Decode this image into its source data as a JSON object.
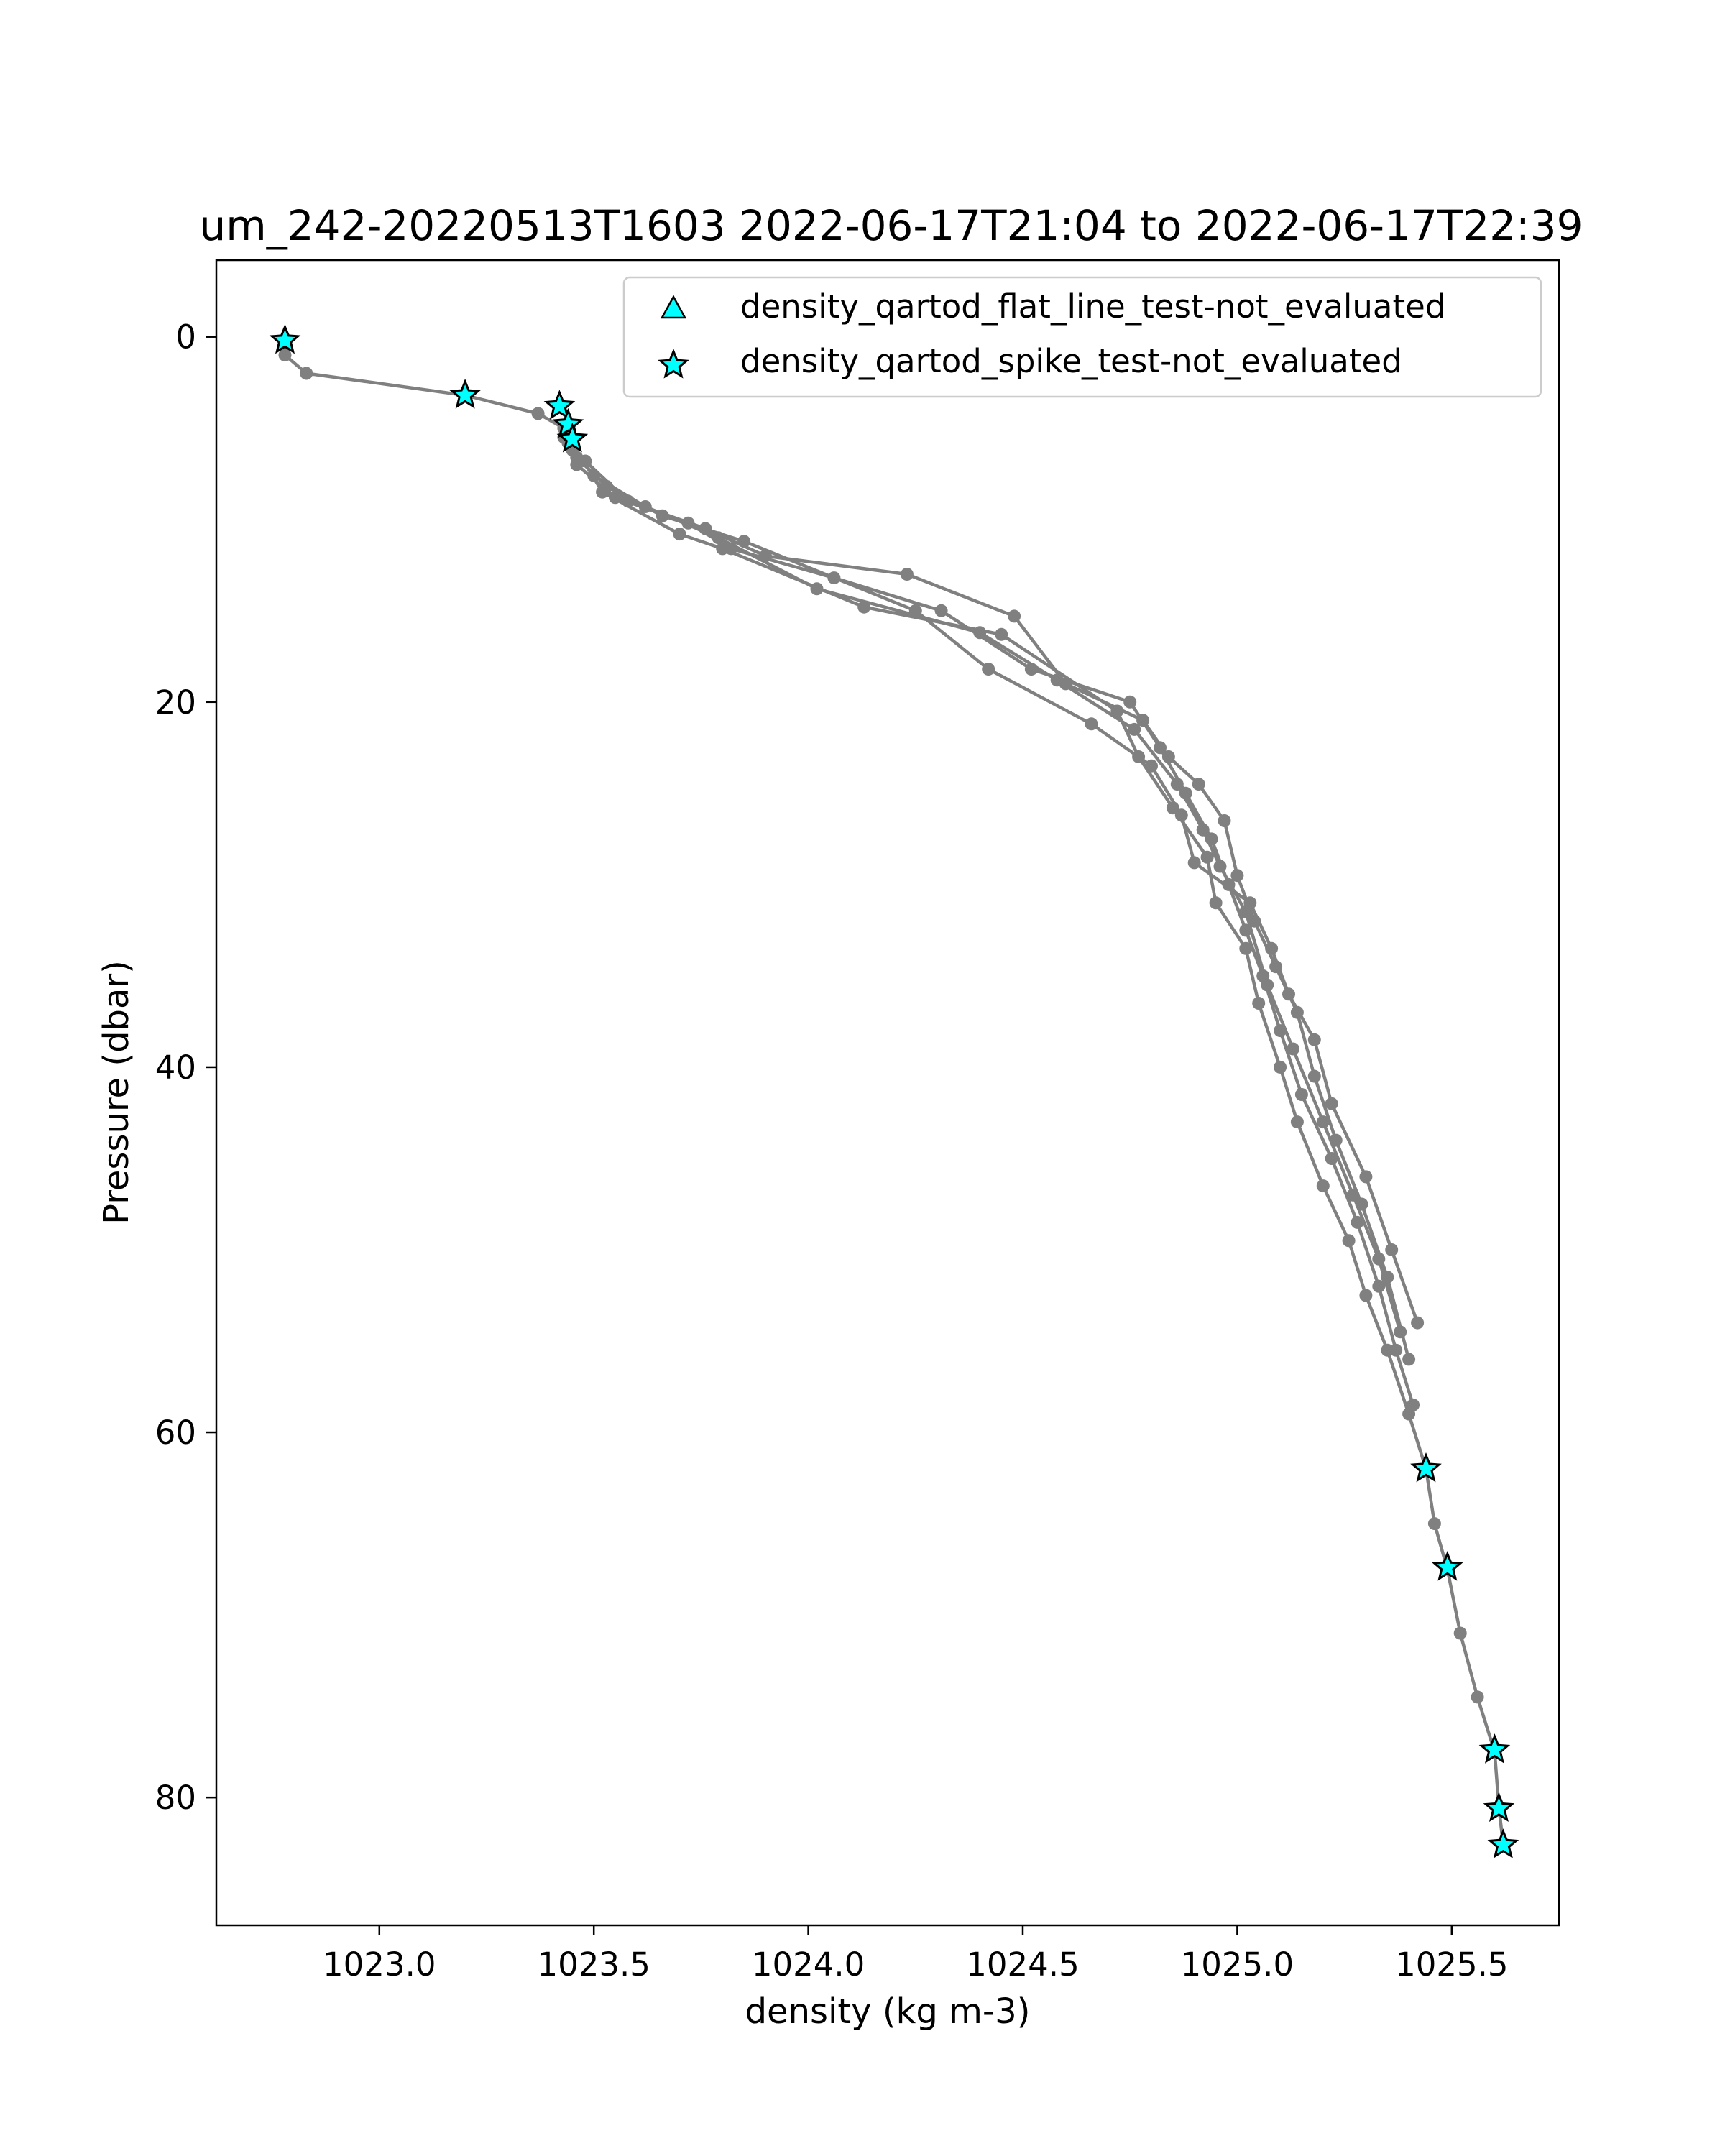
{
  "chart_data": {
    "type": "line",
    "title": "um_242-20220513T1603 2022-06-17T21:04 to 2022-06-17T22:39",
    "xlabel": "density (kg m-3)",
    "ylabel": "Pressure (dbar)",
    "xlim": [
      1022.62,
      1025.75
    ],
    "ylim": [
      87.0,
      -4.2
    ],
    "y_inverted": true,
    "xticks": [
      1023.0,
      1023.5,
      1024.0,
      1024.5,
      1025.0,
      1025.5
    ],
    "xtick_labels": [
      "1023.0",
      "1023.5",
      "1024.0",
      "1024.5",
      "1025.0",
      "1025.5"
    ],
    "yticks": [
      0,
      20,
      40,
      60,
      80
    ],
    "ytick_labels": [
      "0",
      "20",
      "40",
      "60",
      "80"
    ],
    "grid": false,
    "legend_position": "top-right",
    "colors": {
      "profile_line": "#808080",
      "marker_fill": "#00ffff",
      "marker_edge": "#000000"
    },
    "legend": [
      {
        "label": "density_qartod_flat_line_test-not_evaluated",
        "marker": "triangle"
      },
      {
        "label": "density_qartod_spike_test-not_evaluated",
        "marker": "star"
      }
    ],
    "series": [
      {
        "x": [
          1022.78,
          1022.78,
          1022.83,
          1023.2,
          1023.37,
          1023.43,
          1023.45,
          1023.52,
          1023.7,
          1023.8,
          1024.13,
          1024.45,
          1024.72,
          1024.77,
          1024.85,
          1024.93,
          1024.95,
          1025.02,
          1025.05,
          1025.1,
          1025.14,
          1025.2,
          1025.26,
          1025.3,
          1025.35,
          1025.4,
          1025.44,
          1025.46,
          1025.49,
          1025.52,
          1025.56,
          1025.6,
          1025.61,
          1025.62
        ],
        "y": [
          0.3,
          1.0,
          2.0,
          3.2,
          4.2,
          5.0,
          5.8,
          8.5,
          10.8,
          11.6,
          14.8,
          16.3,
          20.5,
          23.0,
          25.8,
          28.5,
          31.0,
          33.5,
          36.5,
          40.0,
          43.0,
          46.5,
          49.5,
          52.5,
          55.5,
          59.0,
          62.0,
          65.0,
          67.5,
          71.0,
          74.5,
          77.5,
          80.5,
          82.6
        ]
      },
      {
        "x": [
          1023.43,
          1023.46,
          1023.55,
          1023.72,
          1023.82,
          1024.06,
          1024.31,
          1024.52,
          1024.75,
          1024.82,
          1024.88,
          1024.94,
          1024.98,
          1025.02,
          1025.06,
          1025.1,
          1025.15,
          1025.22,
          1025.28,
          1025.33,
          1025.37,
          1025.41
        ],
        "y": [
          5.5,
          7.0,
          8.8,
          10.2,
          11.6,
          13.2,
          15.0,
          18.2,
          20.0,
          22.5,
          25.0,
          27.5,
          30.0,
          32.5,
          35.0,
          38.0,
          41.5,
          45.0,
          48.5,
          52.0,
          55.5,
          58.5
        ]
      },
      {
        "x": [
          1023.44,
          1023.48,
          1023.58,
          1023.76,
          1023.9,
          1024.23,
          1024.48,
          1024.6,
          1024.78,
          1024.84,
          1024.91,
          1024.97,
          1025.0,
          1025.04,
          1025.09,
          1025.14,
          1025.18,
          1025.23,
          1025.29,
          1025.35,
          1025.4
        ],
        "y": [
          5.8,
          6.8,
          9.0,
          10.5,
          12.0,
          13.0,
          15.3,
          19.0,
          21.0,
          23.0,
          24.5,
          26.5,
          29.5,
          32.0,
          34.5,
          37.0,
          40.5,
          44.0,
          47.5,
          51.5,
          56.0
        ]
      },
      {
        "x": [
          1023.45,
          1023.5,
          1023.62,
          1023.79,
          1024.02,
          1024.4,
          1024.58,
          1024.76,
          1024.86,
          1024.92,
          1024.96,
          1025.02,
          1025.07,
          1025.13,
          1025.2,
          1025.27,
          1025.33,
          1025.38
        ],
        "y": [
          6.2,
          7.6,
          9.3,
          11.0,
          13.8,
          16.2,
          18.8,
          21.5,
          24.5,
          27.0,
          29.0,
          31.5,
          35.5,
          39.0,
          43.0,
          47.0,
          50.5,
          54.5
        ]
      },
      {
        "x": [
          1023.46,
          1023.53,
          1023.66,
          1023.85,
          1024.25,
          1024.42,
          1024.66,
          1024.8,
          1024.87,
          1024.9,
          1025.03,
          1025.08,
          1025.12,
          1025.18,
          1025.22,
          1025.3,
          1025.36,
          1025.42
        ],
        "y": [
          6.6,
          8.2,
          9.8,
          11.2,
          15.0,
          18.2,
          21.2,
          23.5,
          26.2,
          28.8,
          31.0,
          33.5,
          36.0,
          38.5,
          42.0,
          46.0,
          50.0,
          54.0
        ]
      }
    ],
    "star_markers": {
      "x": [
        1022.78,
        1023.2,
        1023.42,
        1023.44,
        1023.45,
        1025.44,
        1025.49,
        1025.6,
        1025.61,
        1025.62
      ],
      "y": [
        0.2,
        3.2,
        3.8,
        4.8,
        5.6,
        62.0,
        67.4,
        77.4,
        80.6,
        82.6
      ]
    }
  }
}
